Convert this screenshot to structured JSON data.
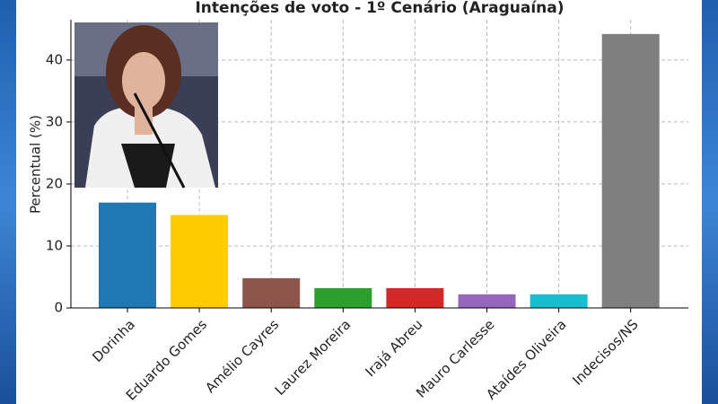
{
  "chart_data": {
    "type": "bar",
    "title": "Intenções de voto - 1º Cenário (Araguaína)",
    "y_label": "Percentual (%)",
    "categories": [
      "Dorinha",
      "Eduardo Gomes",
      "Amélio Cayres",
      "Laurez Moreira",
      "Irajá Abreu",
      "Mauro Carlesse",
      "Ataídes Oliveira",
      "Indecisos/NS"
    ],
    "values": [
      17,
      15,
      4.8,
      3.2,
      3.2,
      2.2,
      2.2,
      44.2
    ],
    "colors": [
      "#1f77b4",
      "#ffcc00",
      "#8c564b",
      "#2ca02c",
      "#d62728",
      "#9467bd",
      "#17becf",
      "#7f7f7f"
    ],
    "ylim": [
      0,
      46.5
    ],
    "yticks": [
      0,
      10,
      20,
      30,
      40
    ],
    "grid": true
  }
}
